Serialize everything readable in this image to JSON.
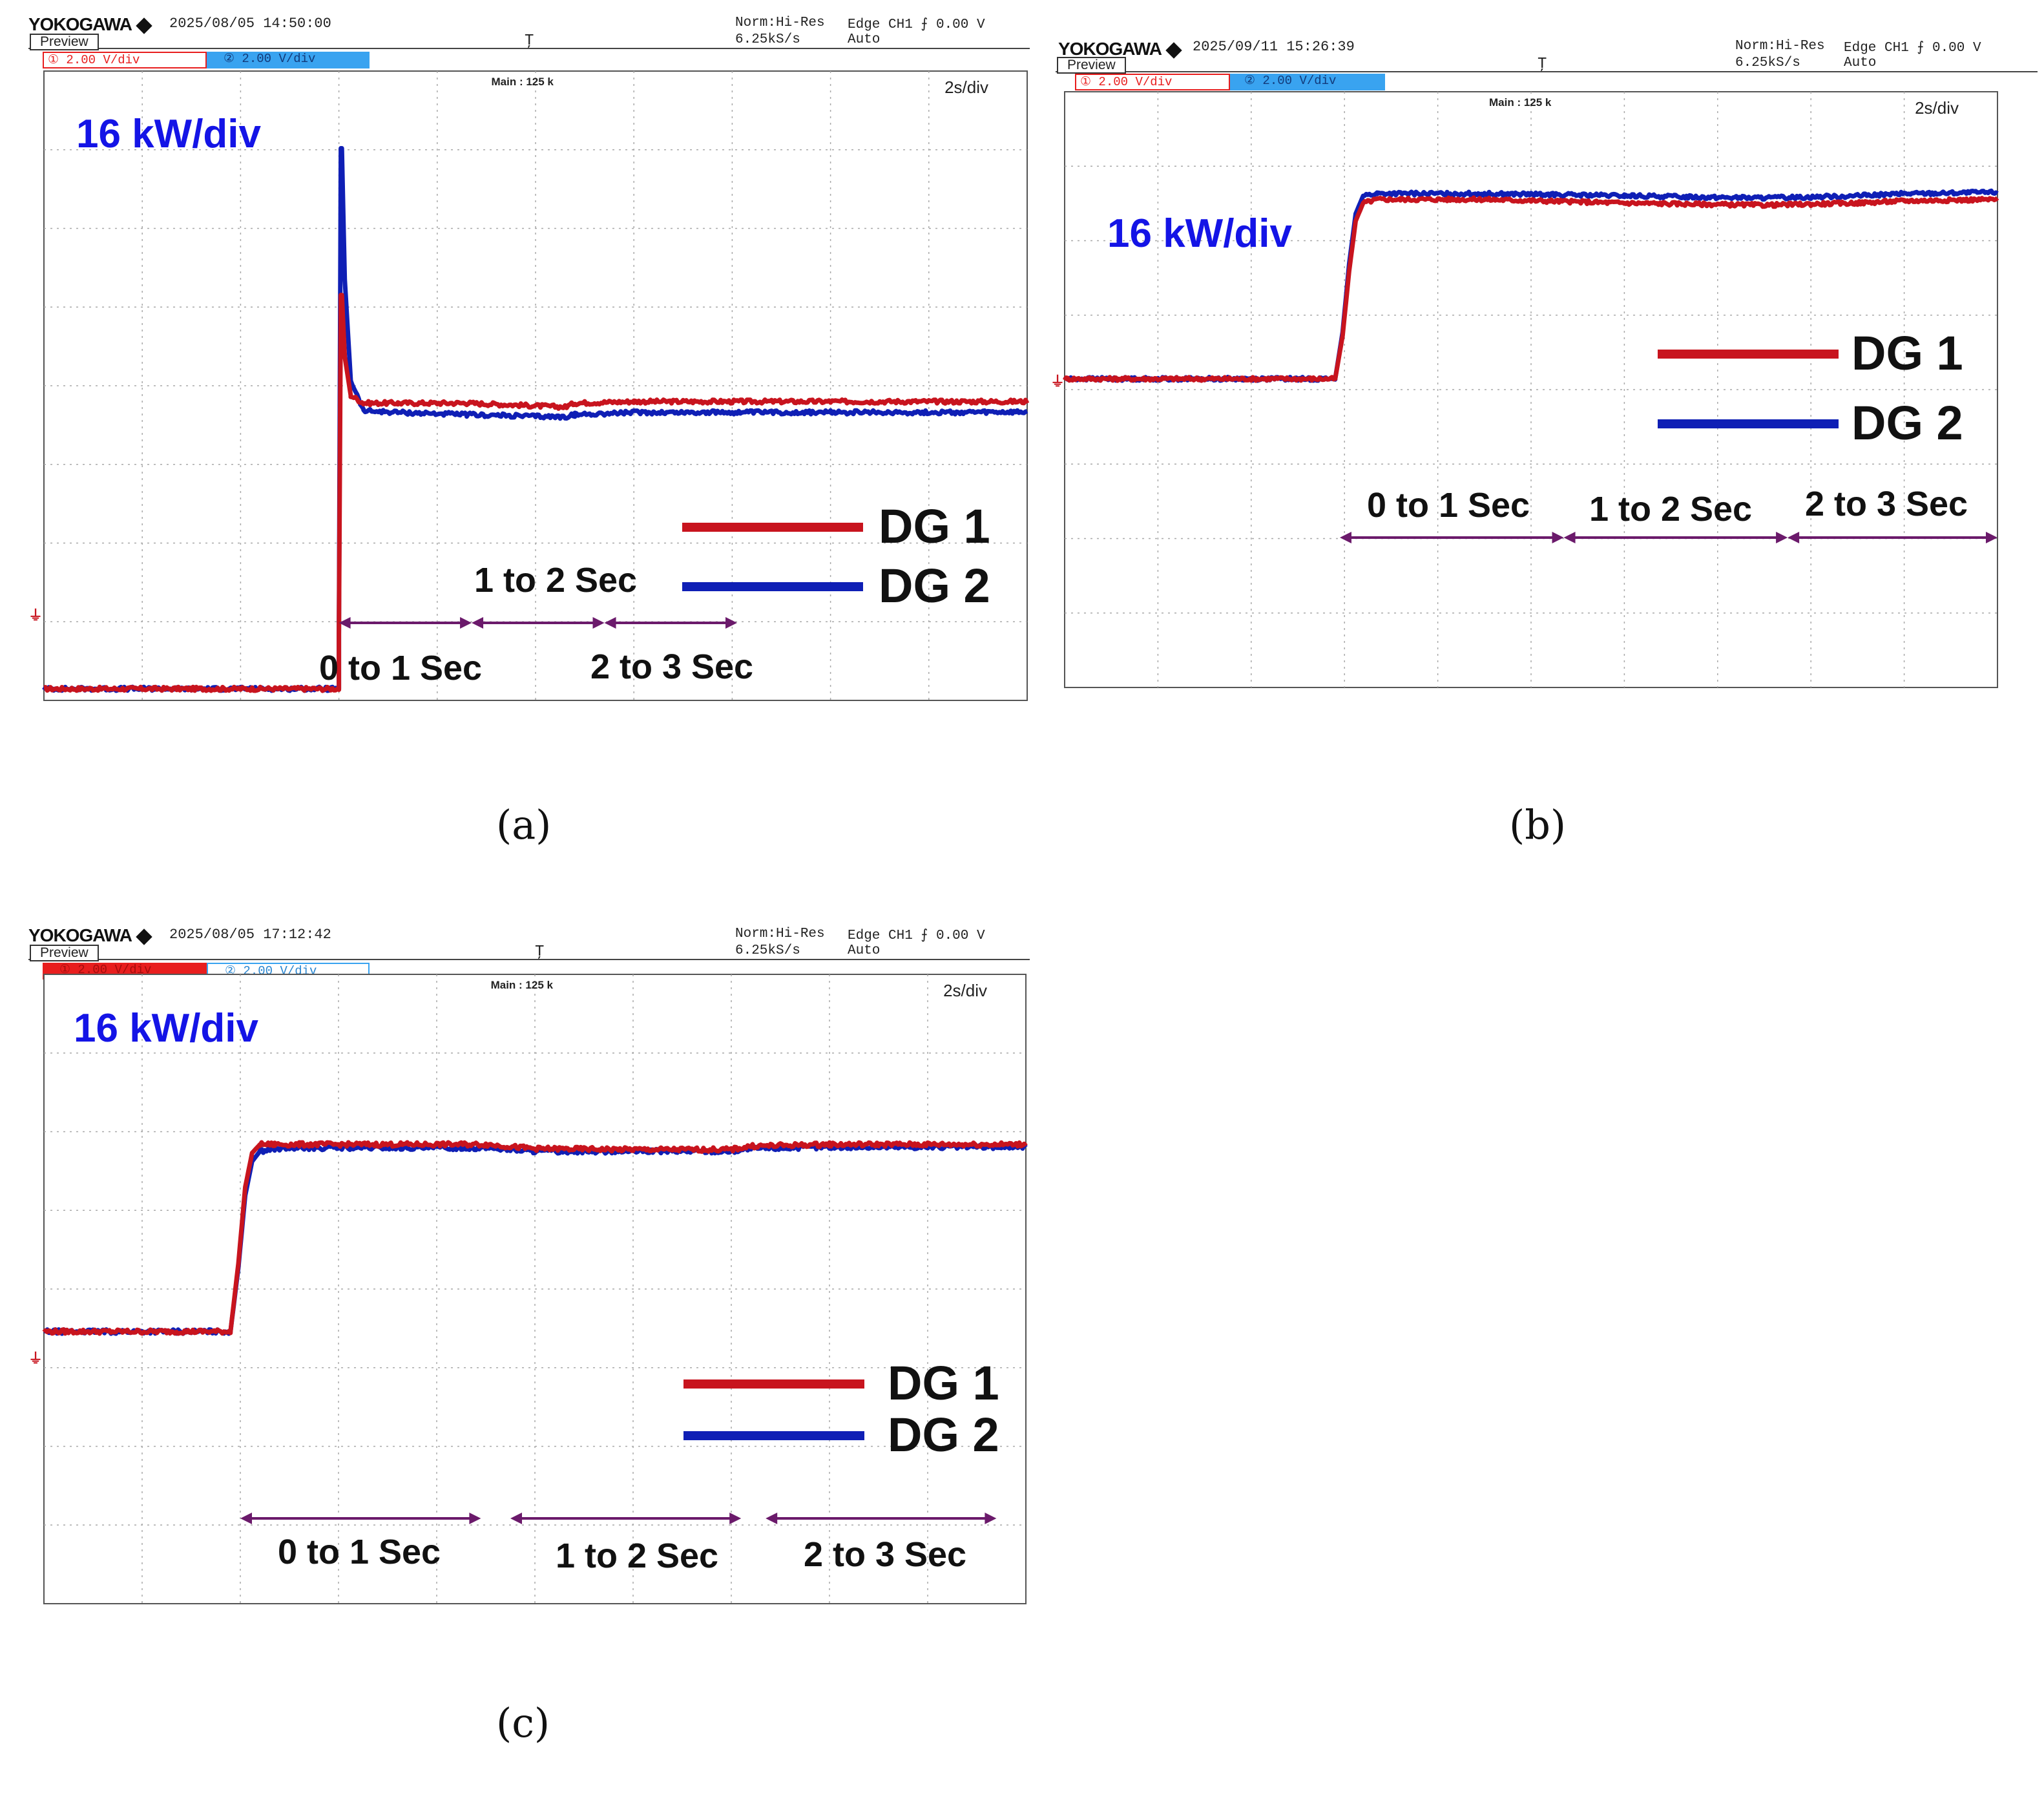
{
  "colors": {
    "dg1": "#c8141e",
    "dg2": "#0f1fb5",
    "arrow": "#6b1a6b",
    "scale": "#1414e6",
    "grid": "#a8a8a8",
    "ch1_box": "#e81e1e",
    "ch2_box": "#39a3f0"
  },
  "panels": [
    {
      "id": "a",
      "caption": "(a)",
      "header": {
        "brand": "YOKOGAWA",
        "datetime": "2025/08/05 14:50:00",
        "preview": "Preview",
        "ch1": "① 2.00 V/div",
        "ch2": "② 2.00 V/div",
        "mode": "Norm:Hi-Res",
        "rate": "6.25kS/s",
        "trigger": "Edge CH1 ⨍ 0.00 V",
        "trigger_mode": "Auto",
        "main": "Main : 125 k",
        "timebase": "2s/div"
      },
      "scale_label": "16 kW/div",
      "legend": [
        {
          "name": "DG 1"
        },
        {
          "name": "DG 2"
        }
      ],
      "intervals": [
        {
          "label": "0 to 1 Sec"
        },
        {
          "label": "1 to 2 Sec"
        },
        {
          "label": "2 to 3 Sec"
        }
      ],
      "chart_data": {
        "type": "line",
        "x_units": "div (2 s/div)",
        "y_units": "div (16 kW/div, from ground marker)",
        "xlim": [
          0,
          10
        ],
        "ylim": [
          -0.15,
          8
        ],
        "series": [
          {
            "name": "DG 1",
            "x": [
              0,
              3.0,
              3.0,
              3.02,
              3.03,
              3.06,
              3.12,
              3.25,
              3.6,
              4.3,
              5.3,
              5.4,
              6.0,
              8.0,
              10.0
            ],
            "y": [
              0,
              0,
              0.7,
              5.1,
              5.1,
              4.3,
              3.8,
              3.7,
              3.7,
              3.7,
              3.65,
              3.7,
              3.72,
              3.72,
              3.72
            ]
          },
          {
            "name": "DG 2",
            "x": [
              0,
              3.0,
              3.0,
              3.02,
              3.03,
              3.06,
              3.12,
              3.25,
              3.6,
              4.3,
              5.3,
              5.4,
              6.0,
              8.0,
              10.0
            ],
            "y": [
              0,
              0,
              0.7,
              7.0,
              7.0,
              5.3,
              4.0,
              3.6,
              3.58,
              3.55,
              3.52,
              3.55,
              3.58,
              3.58,
              3.58
            ]
          }
        ],
        "annotations": [
          {
            "label": "0 to 1 Sec",
            "x": [
              3.0,
              4.35
            ]
          },
          {
            "label": "1 to 2 Sec",
            "x": [
              4.35,
              5.7
            ]
          },
          {
            "label": "2 to 3 Sec",
            "x": [
              5.7,
              7.05
            ]
          }
        ]
      }
    },
    {
      "id": "b",
      "caption": "(b)",
      "header": {
        "brand": "YOKOGAWA",
        "datetime": "2025/09/11 15:26:39",
        "preview": "Preview",
        "ch1": "① 2.00 V/div",
        "ch2": "② 2.00 V/div",
        "mode": "Norm:Hi-Res",
        "rate": "6.25kS/s",
        "trigger": "Edge CH1 ⨍ 0.00 V",
        "trigger_mode": "Auto",
        "main": "Main : 125 k",
        "timebase": "2s/div"
      },
      "scale_label": "16 kW/div",
      "legend": [
        {
          "name": "DG 1"
        },
        {
          "name": "DG 2"
        }
      ],
      "intervals": [
        {
          "label": "0 to 1 Sec"
        },
        {
          "label": "1 to 2 Sec"
        },
        {
          "label": "2 to 3 Sec"
        }
      ],
      "chart_data": {
        "type": "line",
        "x_units": "div (2 s/div)",
        "y_units": "div (16 kW/div, from ground marker)",
        "xlim": [
          0,
          10
        ],
        "ylim": [
          -4.3,
          4
        ],
        "series": [
          {
            "name": "DG 1",
            "x": [
              0,
              2.9,
              2.98,
              3.05,
              3.12,
              3.2,
              3.35,
              3.6,
              4.5,
              6.0,
              7.5,
              8.5,
              9.0,
              10.0
            ],
            "y": [
              0,
              0,
              0.6,
              1.5,
              2.2,
              2.45,
              2.5,
              2.5,
              2.5,
              2.45,
              2.42,
              2.45,
              2.48,
              2.5
            ]
          },
          {
            "name": "DG 2",
            "x": [
              0,
              2.9,
              2.98,
              3.05,
              3.12,
              3.2,
              3.35,
              3.6,
              4.5,
              6.0,
              7.5,
              8.5,
              9.0,
              10.0
            ],
            "y": [
              0,
              0,
              0.65,
              1.6,
              2.3,
              2.55,
              2.58,
              2.58,
              2.58,
              2.55,
              2.52,
              2.55,
              2.58,
              2.6
            ]
          }
        ],
        "annotations": [
          {
            "label": "0 to 1 Sec",
            "x": [
              2.95,
              5.35
            ]
          },
          {
            "label": "1 to 2 Sec",
            "x": [
              5.35,
              7.75
            ]
          },
          {
            "label": "2 to 3 Sec",
            "x": [
              7.75,
              10.0
            ]
          }
        ]
      }
    },
    {
      "id": "c",
      "caption": "(c)",
      "header": {
        "brand": "YOKOGAWA",
        "datetime": "2025/08/05 17:12:42",
        "preview": "Preview",
        "ch1": "① 2.00 V/div",
        "ch2": "② 2.00 V/div",
        "mode": "Norm:Hi-Res",
        "rate": "6.25kS/s",
        "trigger": "Edge CH1 ⨍ 0.00 V",
        "trigger_mode": "Auto",
        "main": "Main : 125 k",
        "timebase": "2s/div"
      },
      "scale_label": "16 kW/div",
      "legend": [
        {
          "name": "DG 1"
        },
        {
          "name": "DG 2"
        }
      ],
      "intervals": [
        {
          "label": "0 to 1 Sec"
        },
        {
          "label": "1 to 2 Sec"
        },
        {
          "label": "2 to 3 Sec"
        }
      ],
      "chart_data": {
        "type": "line",
        "x_units": "div (2 s/div)",
        "y_units": "div (16 kW/div, from ground marker)",
        "xlim": [
          0,
          10
        ],
        "ylim": [
          -3.2,
          4.2
        ],
        "series": [
          {
            "name": "DG 1",
            "x": [
              0,
              1.9,
              1.98,
              2.05,
              2.12,
              2.2,
              2.35,
              2.6,
              4.5,
              5.0,
              6.0,
              7.0,
              7.2,
              8.0,
              10.0
            ],
            "y": [
              0,
              0,
              0.8,
              1.7,
              2.1,
              2.2,
              2.2,
              2.2,
              2.2,
              2.15,
              2.14,
              2.14,
              2.18,
              2.2,
              2.2
            ]
          },
          {
            "name": "DG 2",
            "x": [
              0,
              1.9,
              1.98,
              2.05,
              2.12,
              2.2,
              2.35,
              2.6,
              4.5,
              5.0,
              6.0,
              7.0,
              7.2,
              8.0,
              10.0
            ],
            "y": [
              0,
              0,
              0.75,
              1.6,
              2.0,
              2.12,
              2.15,
              2.16,
              2.16,
              2.12,
              2.12,
              2.12,
              2.15,
              2.17,
              2.17
            ]
          }
        ],
        "annotations": [
          {
            "label": "0 to 1 Sec",
            "x": [
              2.0,
              4.45
            ]
          },
          {
            "label": "1 to 2 Sec",
            "x": [
              4.75,
              7.1
            ]
          },
          {
            "label": "2 to 3 Sec",
            "x": [
              7.35,
              9.7
            ]
          }
        ]
      }
    }
  ]
}
